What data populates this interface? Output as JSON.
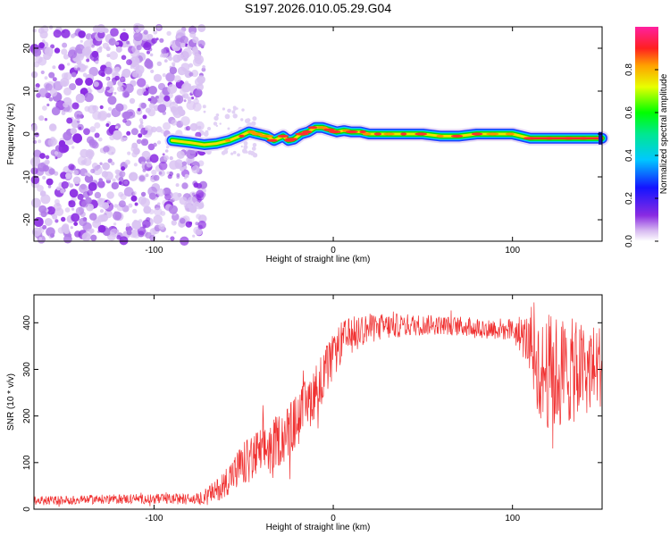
{
  "title": "S197.2026.010.05.29.G04",
  "chart_data": [
    {
      "type": "heatmap",
      "name": "spectrogram",
      "xlabel": "Height of straight line (km)",
      "ylabel": "Frequency (Hz)",
      "xlim": [
        -167,
        150
      ],
      "ylim": [
        -25,
        25
      ],
      "xticks": [
        -100,
        0,
        100
      ],
      "yticks": [
        -20,
        -10,
        0,
        10,
        20
      ],
      "noise_region_x": [
        -167,
        -72
      ],
      "ridge": {
        "x": [
          -90,
          -80,
          -72,
          -65,
          -58,
          -52,
          -47,
          -42,
          -37,
          -33,
          -28,
          -25,
          -22,
          -18,
          -14,
          -10,
          -6,
          -2,
          2,
          6,
          10,
          15,
          20,
          25,
          30,
          40,
          50,
          60,
          70,
          80,
          90,
          100,
          110,
          120,
          130,
          140,
          150
        ],
        "y": [
          -1.5,
          -2.0,
          -2.5,
          -2.2,
          -1.5,
          -0.5,
          0.5,
          0.0,
          -0.5,
          -1.5,
          -0.5,
          -1.5,
          -1.2,
          0.0,
          0.5,
          1.5,
          1.5,
          1.0,
          0.5,
          0.8,
          0.5,
          0.5,
          0.0,
          0.0,
          0.0,
          0.0,
          0.0,
          -0.5,
          -0.5,
          0.0,
          0.0,
          0.0,
          -1.0,
          -1.0,
          -1.0,
          -1.0,
          -1.0
        ]
      },
      "colorbar": {
        "label": "Normalized spectral amplitude",
        "ticks": [
          "0.0",
          "0.2",
          "0.4",
          "0.6",
          "0.8"
        ],
        "range": [
          0,
          1
        ]
      }
    },
    {
      "type": "line",
      "name": "snr",
      "xlabel": "Height of straight line (km)",
      "ylabel": "SNR (10 * v/v)",
      "xlim": [
        -167,
        150
      ],
      "ylim": [
        0,
        460
      ],
      "xticks": [
        -100,
        0,
        100
      ],
      "yticks": [
        0,
        100,
        200,
        300,
        400
      ],
      "color": "#f03030",
      "trend": {
        "x": [
          -167,
          -120,
          -75,
          -65,
          -55,
          -45,
          -35,
          -25,
          -15,
          -5,
          5,
          15,
          25,
          40,
          60,
          80,
          100,
          110,
          115,
          125,
          140,
          150
        ],
        "mean": [
          18,
          22,
          22,
          40,
          80,
          110,
          135,
          165,
          220,
          290,
          360,
          385,
          390,
          395,
          395,
          390,
          385,
          360,
          300,
          290,
          300,
          310
        ],
        "spread": [
          10,
          10,
          12,
          25,
          40,
          55,
          55,
          60,
          60,
          55,
          45,
          35,
          30,
          25,
          20,
          22,
          25,
          60,
          120,
          130,
          100,
          90
        ]
      }
    }
  ]
}
